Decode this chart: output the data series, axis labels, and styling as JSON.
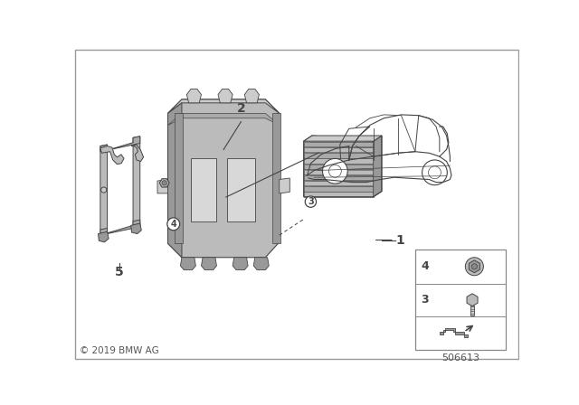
{
  "bg_color": "#ffffff",
  "border_color": "#cccccc",
  "copyright_text": "© 2019 BMW AG",
  "part_number": "506613",
  "label_color": "#111111",
  "line_color": "#444444",
  "gray1": "#aaaaaa",
  "gray2": "#bbbbbb",
  "gray3": "#cccccc",
  "gray4": "#999999",
  "gray5": "#888888",
  "gray6": "#d8d8d8"
}
